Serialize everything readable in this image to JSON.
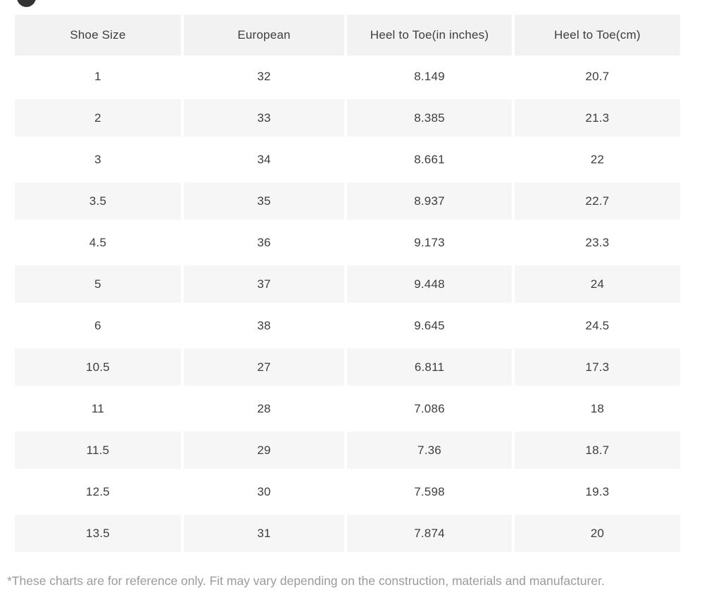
{
  "avatar": {
    "color": "#333333"
  },
  "colors": {
    "header_bg": "#f2f2f2",
    "stripe_bg": "#f6f6f6",
    "text": "#3d3d3d",
    "footnote": "#9b9b9b",
    "page_bg": "#ffffff"
  },
  "table": {
    "headers": [
      "Shoe Size",
      "European",
      "Heel to Toe(in inches)",
      "Heel to Toe(cm)"
    ],
    "rows": [
      [
        "1",
        "32",
        "8.149",
        "20.7"
      ],
      [
        "2",
        "33",
        "8.385",
        "21.3"
      ],
      [
        "3",
        "34",
        "8.661",
        "22"
      ],
      [
        "3.5",
        "35",
        "8.937",
        "22.7"
      ],
      [
        "4.5",
        "36",
        "9.173",
        "23.3"
      ],
      [
        "5",
        "37",
        "9.448",
        "24"
      ],
      [
        "6",
        "38",
        "9.645",
        "24.5"
      ],
      [
        "10.5",
        "27",
        "6.811",
        "17.3"
      ],
      [
        "11",
        "28",
        "7.086",
        "18"
      ],
      [
        "11.5",
        "29",
        "7.36",
        "18.7"
      ],
      [
        "12.5",
        "30",
        "7.598",
        "19.3"
      ],
      [
        "13.5",
        "31",
        "7.874",
        "20"
      ]
    ]
  },
  "chart_data": {
    "type": "table",
    "title": "",
    "columns": [
      "Shoe Size",
      "European",
      "Heel to Toe(in inches)",
      "Heel to Toe(cm)"
    ],
    "rows": [
      [
        "1",
        "32",
        "8.149",
        "20.7"
      ],
      [
        "2",
        "33",
        "8.385",
        "21.3"
      ],
      [
        "3",
        "34",
        "8.661",
        "22"
      ],
      [
        "3.5",
        "35",
        "8.937",
        "22.7"
      ],
      [
        "4.5",
        "36",
        "9.173",
        "23.3"
      ],
      [
        "5",
        "37",
        "9.448",
        "24"
      ],
      [
        "6",
        "38",
        "9.645",
        "24.5"
      ],
      [
        "10.5",
        "27",
        "6.811",
        "17.3"
      ],
      [
        "11",
        "28",
        "7.086",
        "18"
      ],
      [
        "11.5",
        "29",
        "7.36",
        "18.7"
      ],
      [
        "12.5",
        "30",
        "7.598",
        "19.3"
      ],
      [
        "13.5",
        "31",
        "7.874",
        "20"
      ]
    ]
  },
  "footnote": "*These charts are for reference only. Fit may vary depending on the construction, materials and manufacturer."
}
